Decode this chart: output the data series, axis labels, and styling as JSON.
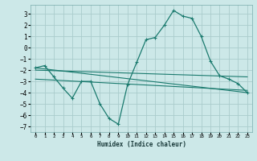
{
  "title": "",
  "xlabel": "Humidex (Indice chaleur)",
  "background_color": "#cce8e8",
  "grid_color": "#aacccc",
  "line_color": "#1a7a6e",
  "xlim": [
    -0.5,
    23.5
  ],
  "ylim": [
    -7.5,
    3.8
  ],
  "yticks": [
    -7,
    -6,
    -5,
    -4,
    -3,
    -2,
    -1,
    0,
    1,
    2,
    3
  ],
  "xticks": [
    0,
    1,
    2,
    3,
    4,
    5,
    6,
    7,
    8,
    9,
    10,
    11,
    12,
    13,
    14,
    15,
    16,
    17,
    18,
    19,
    20,
    21,
    22,
    23
  ],
  "main_series": {
    "x": [
      0,
      1,
      2,
      3,
      4,
      5,
      6,
      7,
      8,
      9,
      10,
      11,
      12,
      13,
      14,
      15,
      16,
      17,
      18,
      19,
      20,
      21,
      22,
      23
    ],
    "y": [
      -1.8,
      -1.6,
      -2.6,
      -3.6,
      -4.5,
      -3.0,
      -3.0,
      -5.0,
      -6.3,
      -6.8,
      -3.3,
      -1.3,
      0.7,
      0.9,
      2.0,
      3.3,
      2.8,
      2.6,
      1.0,
      -1.2,
      -2.5,
      -2.8,
      -3.2,
      -4.0
    ]
  },
  "trend_lines": [
    {
      "x": [
        0,
        23
      ],
      "y": [
        -1.8,
        -4.0
      ]
    },
    {
      "x": [
        0,
        23
      ],
      "y": [
        -2.0,
        -2.6
      ]
    },
    {
      "x": [
        0,
        23
      ],
      "y": [
        -2.8,
        -3.8
      ]
    }
  ]
}
